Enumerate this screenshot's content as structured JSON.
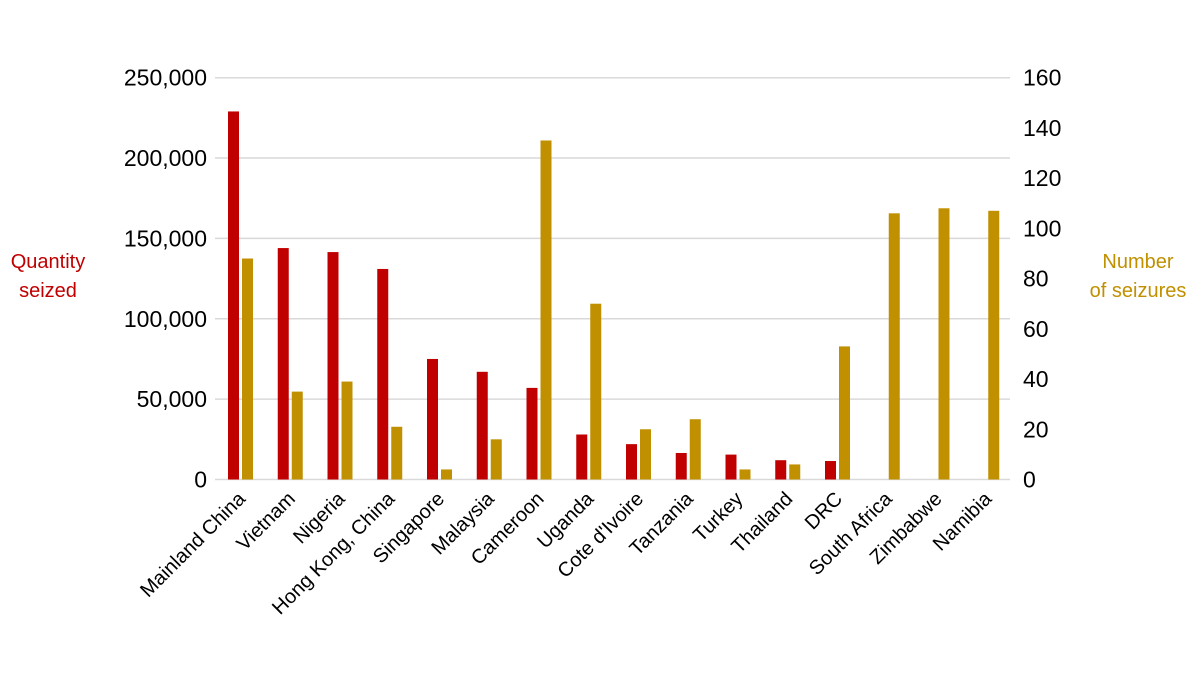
{
  "chart_data": {
    "type": "bar",
    "categories": [
      "Mainland China",
      "Vietnam",
      "Nigeria",
      "Hong Kong, China",
      "Singapore",
      "Malaysia",
      "Cameroon",
      "Uganda",
      "Cote d'Ivoire",
      "Tanzania",
      "Turkey",
      "Thailand",
      "DRC",
      "South Africa",
      "Zimbabwe",
      "Namibia"
    ],
    "series": [
      {
        "name": "Quantity seized",
        "axis": "left",
        "color": "#c00000",
        "values": [
          229000,
          144000,
          141500,
          131000,
          75000,
          67000,
          57000,
          28000,
          22000,
          16500,
          15500,
          12000,
          11500,
          null,
          null,
          null
        ]
      },
      {
        "name": "Number of seizures",
        "axis": "right",
        "color": "#c09000",
        "values": [
          88,
          35,
          39,
          21,
          4,
          16,
          135,
          70,
          20,
          24,
          4,
          6,
          53,
          106,
          108,
          107
        ]
      }
    ],
    "y_left": {
      "label": "Quantity seized",
      "lim": [
        0,
        250000
      ],
      "ticks": [
        "0",
        "50,000",
        "100,000",
        "150,000",
        "200,000",
        "250,000"
      ],
      "color": "#c00000"
    },
    "y_right": {
      "label_lines": [
        "Number",
        "of seizures"
      ],
      "lim": [
        0,
        160
      ],
      "ticks": [
        "0",
        "20",
        "40",
        "60",
        "80",
        "100",
        "120",
        "140",
        "160"
      ],
      "color": "#c09000"
    },
    "grid": true,
    "gridline_color": "#d9d9d9"
  }
}
